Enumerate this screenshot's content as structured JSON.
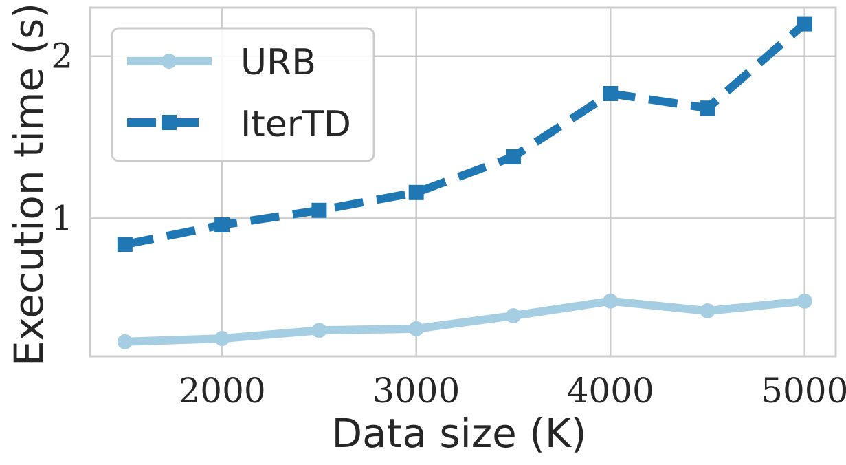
{
  "chart_data": {
    "type": "line",
    "xlabel": "Data size (K)",
    "ylabel": "Execution time (s)",
    "x": [
      1500,
      2000,
      2500,
      3000,
      3500,
      4000,
      4500,
      5000
    ],
    "xticks": [
      2000,
      3000,
      4000,
      5000
    ],
    "yticks": [
      1,
      2
    ],
    "xlim": [
      1320,
      5160
    ],
    "ylim": [
      0.15,
      2.3
    ],
    "grid": true,
    "legend": "top-left",
    "series": [
      {
        "name": "URB",
        "color": "#a6cee3",
        "style": "solid",
        "marker": "circle",
        "values": [
          0.24,
          0.26,
          0.31,
          0.32,
          0.4,
          0.49,
          0.43,
          0.49
        ]
      },
      {
        "name": "IterTD",
        "color": "#1f78b4",
        "style": "dashed",
        "marker": "square",
        "values": [
          0.84,
          0.96,
          1.05,
          1.16,
          1.38,
          1.77,
          1.68,
          2.2
        ]
      }
    ]
  }
}
